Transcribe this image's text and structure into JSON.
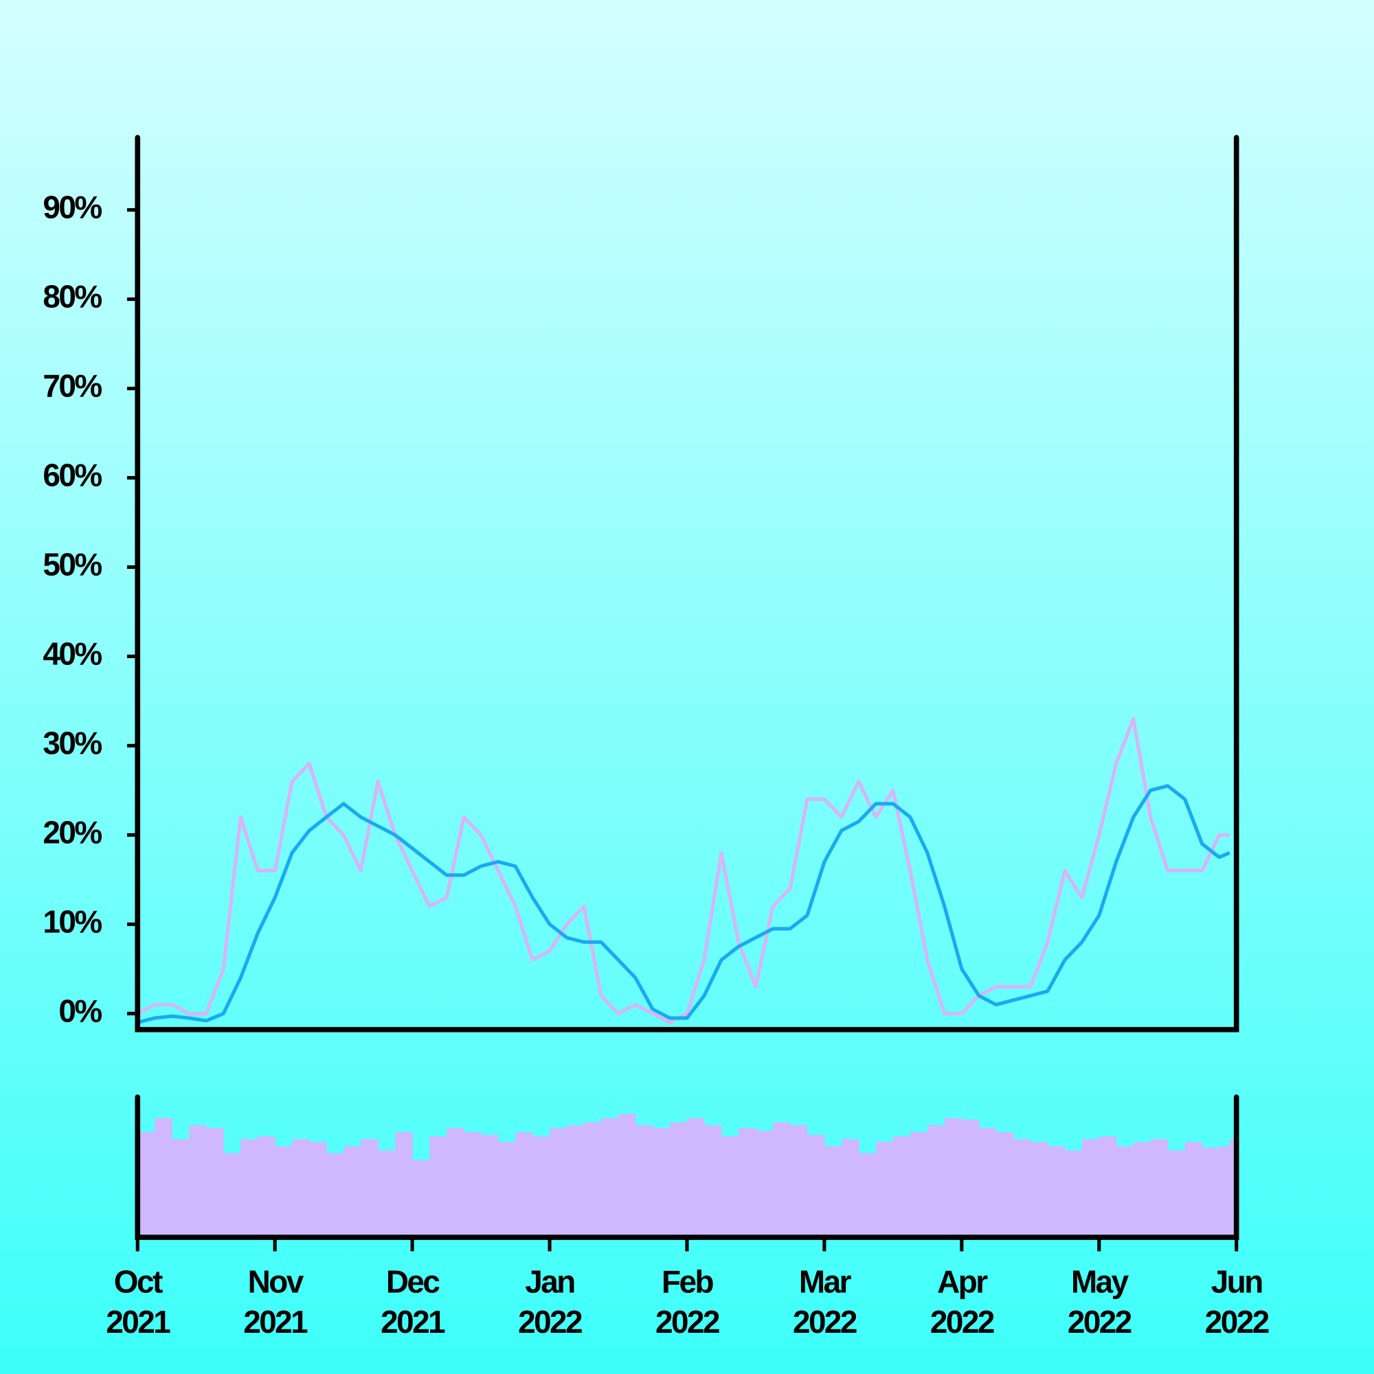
{
  "chart_data": [
    {
      "type": "line",
      "x": [
        0,
        0.125,
        0.25,
        0.375,
        0.5,
        0.625,
        0.75,
        0.875,
        1,
        1.125,
        1.25,
        1.375,
        1.5,
        1.625,
        1.75,
        1.875,
        2,
        2.125,
        2.25,
        2.375,
        2.5,
        2.625,
        2.75,
        2.875,
        3,
        3.125,
        3.25,
        3.375,
        3.5,
        3.625,
        3.75,
        3.875,
        4,
        4.125,
        4.25,
        4.375,
        4.5,
        4.625,
        4.75,
        4.875,
        5,
        5.125,
        5.25,
        5.375,
        5.5,
        5.625,
        5.75,
        5.875,
        6,
        6.125,
        6.25,
        6.375,
        6.5,
        6.625,
        6.75,
        6.875,
        7,
        7.125,
        7.25,
        7.375,
        7.5,
        7.625,
        7.75,
        7.875,
        7.95
      ],
      "series": [
        {
          "color": "#d8b4f8",
          "values": [
            0,
            1,
            1,
            0,
            0,
            5,
            22,
            16,
            16,
            26,
            28,
            22,
            20,
            16,
            26,
            20,
            16,
            12,
            13,
            22,
            20,
            16,
            12,
            6,
            7,
            10,
            12,
            2,
            0,
            1,
            0,
            -1,
            0,
            6,
            18,
            8,
            3,
            12,
            14,
            24,
            24,
            22,
            26,
            22,
            25,
            16,
            6,
            0,
            0,
            2,
            3,
            3,
            3,
            8,
            16,
            13,
            20,
            28,
            33,
            22,
            16,
            16,
            16,
            20,
            20
          ]
        },
        {
          "color": "#1aa9f0",
          "values": [
            -1,
            -0.5,
            -0.3,
            -0.5,
            -0.8,
            0,
            4,
            9,
            13,
            18,
            20.5,
            22,
            23.5,
            22,
            21,
            20,
            18.5,
            17,
            15.5,
            15.5,
            16.5,
            17,
            16.5,
            13,
            10,
            8.5,
            8,
            8,
            6,
            4,
            0.5,
            -0.5,
            -0.5,
            2,
            6,
            7.5,
            8.5,
            9.5,
            9.5,
            11,
            17,
            20.5,
            21.5,
            23.5,
            23.5,
            22,
            18,
            12,
            5,
            2,
            1,
            1.5,
            2,
            2.5,
            6,
            8,
            11,
            17,
            22,
            25,
            25.5,
            24,
            19,
            17.5,
            18
          ]
        }
      ],
      "xlim": [
        0,
        8
      ],
      "xticks": [
        {
          "value": 0,
          "label": "Oct 2021"
        },
        {
          "value": 1,
          "label": "Nov 2021"
        },
        {
          "value": 2,
          "label": "Dec 2021"
        },
        {
          "value": 3,
          "label": "Jan 2022"
        },
        {
          "value": 4,
          "label": "Feb 2022"
        },
        {
          "value": 5,
          "label": "Mar 2022"
        },
        {
          "value": 6,
          "label": "Apr 2022"
        },
        {
          "value": 7,
          "label": "May 2022"
        },
        {
          "value": 8,
          "label": "Jun 2022"
        }
      ],
      "ylim": [
        -1.8,
        98.1
      ],
      "yticks": [
        {
          "value": 0,
          "label": "0%"
        },
        {
          "value": 10,
          "label": "10%"
        },
        {
          "value": 20,
          "label": "20%"
        },
        {
          "value": 30,
          "label": "30%"
        },
        {
          "value": 40,
          "label": "40%"
        },
        {
          "value": 50,
          "label": "50%"
        },
        {
          "value": 60,
          "label": "60%"
        },
        {
          "value": 70,
          "label": "70%"
        },
        {
          "value": 80,
          "label": "80%"
        },
        {
          "value": 90,
          "label": "90%"
        }
      ]
    },
    {
      "type": "bar",
      "color": "#d0b8ff",
      "x": [
        0,
        0.125,
        0.25,
        0.375,
        0.5,
        0.625,
        0.75,
        0.875,
        1,
        1.125,
        1.25,
        1.375,
        1.5,
        1.625,
        1.75,
        1.875,
        2,
        2.125,
        2.25,
        2.375,
        2.5,
        2.625,
        2.75,
        2.875,
        3,
        3.125,
        3.25,
        3.375,
        3.5,
        3.625,
        3.75,
        3.875,
        4,
        4.125,
        4.25,
        4.375,
        4.5,
        4.625,
        4.75,
        4.875,
        5,
        5.125,
        5.25,
        5.375,
        5.5,
        5.625,
        5.75,
        5.875,
        6,
        6.125,
        6.25,
        6.375,
        6.5,
        6.625,
        6.75,
        6.875,
        7,
        7.125,
        7.25,
        7.375,
        7.5,
        7.625,
        7.75,
        7.875,
        7.95
      ],
      "values": [
        75,
        85,
        70,
        80,
        78,
        60,
        70,
        72,
        65,
        70,
        68,
        60,
        65,
        70,
        62,
        75,
        55,
        72,
        78,
        75,
        73,
        68,
        75,
        72,
        78,
        80,
        82,
        85,
        88,
        80,
        78,
        82,
        85,
        80,
        72,
        78,
        76,
        82,
        80,
        73,
        65,
        70,
        60,
        68,
        72,
        75,
        80,
        85,
        84,
        78,
        75,
        70,
        68,
        65,
        62,
        70,
        72,
        65,
        68,
        70,
        62,
        68,
        64,
        65,
        70
      ],
      "xlim": [
        0,
        8
      ],
      "ylim": [
        0,
        100
      ]
    }
  ]
}
